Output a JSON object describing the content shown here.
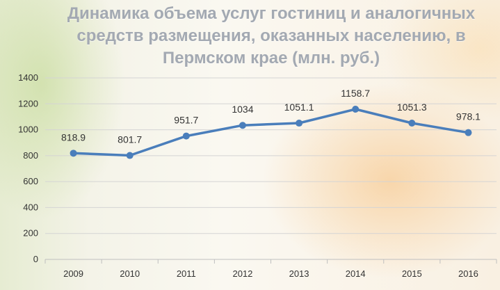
{
  "chart_data": {
    "type": "line",
    "title_lines": [
      "Динамика объема услуг гостиниц и аналогичных",
      "средств размещения, оказанных населению, в",
      "Пермском крае (млн. руб.)"
    ],
    "categories": [
      "2009",
      "2010",
      "2011",
      "2012",
      "2013",
      "2014",
      "2015",
      "2016"
    ],
    "values": [
      818.9,
      801.7,
      951.7,
      1034,
      1051.1,
      1158.7,
      1051.3,
      978.1
    ],
    "data_labels": [
      "818.9",
      "801.7",
      "951.7",
      "1034",
      "1051.1",
      "1158.7",
      "1051.3",
      "978.1"
    ],
    "y_ticks": [
      0,
      200,
      400,
      600,
      800,
      1000,
      1200,
      1400
    ],
    "ylim": [
      0,
      1400
    ],
    "grid": true,
    "legend": "none",
    "colors": {
      "line": "#4a7ebb",
      "grid": "#d4d4d4",
      "title": "#a3a9b2"
    }
  }
}
